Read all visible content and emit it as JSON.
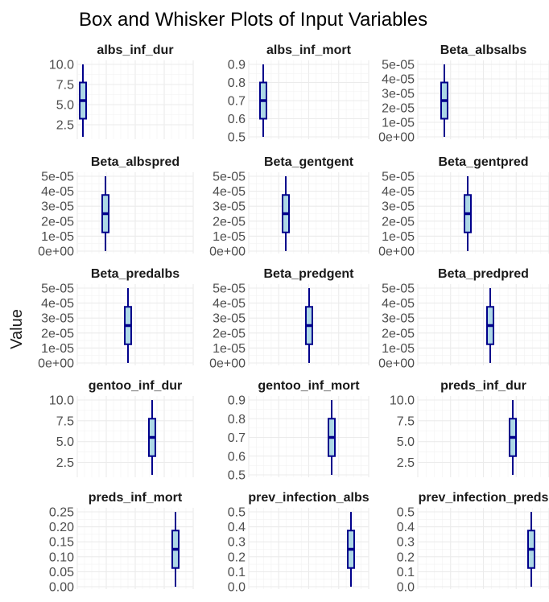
{
  "chart_data": {
    "type": "box",
    "title": "Box and Whisker Plots of Input Variables",
    "xlabel": "",
    "ylabel": "Value",
    "grid": true,
    "box_fill": "#add8e6",
    "box_stroke": "#00008b",
    "facets": [
      {
        "name": "albs_inf_dur",
        "ylim": [
          1,
          10
        ],
        "ticks": [
          "2.5",
          "5.0",
          "7.5",
          "10.0"
        ],
        "tick_values": [
          2.5,
          5.0,
          7.5,
          10.0
        ],
        "min": 1.0,
        "q1": 3.25,
        "median": 5.5,
        "q3": 7.75,
        "max": 10.0
      },
      {
        "name": "albs_inf_mort",
        "ylim": [
          0.5,
          0.9
        ],
        "ticks": [
          "0.5",
          "0.6",
          "0.7",
          "0.8",
          "0.9"
        ],
        "tick_values": [
          0.5,
          0.6,
          0.7,
          0.8,
          0.9
        ],
        "min": 0.5,
        "q1": 0.6,
        "median": 0.7,
        "q3": 0.8,
        "max": 0.9
      },
      {
        "name": "Beta_albsalbs",
        "ylim": [
          0,
          5e-05
        ],
        "ticks": [
          "0e+00",
          "1e-05",
          "2e-05",
          "3e-05",
          "4e-05",
          "5e-05"
        ],
        "tick_values": [
          0,
          1e-05,
          2e-05,
          3e-05,
          4e-05,
          5e-05
        ],
        "min": 0.0,
        "q1": 1.25e-05,
        "median": 2.5e-05,
        "q3": 3.75e-05,
        "max": 5e-05
      },
      {
        "name": "Beta_albspred",
        "ylim": [
          0,
          5e-05
        ],
        "ticks": [
          "0e+00",
          "1e-05",
          "2e-05",
          "3e-05",
          "4e-05",
          "5e-05"
        ],
        "tick_values": [
          0,
          1e-05,
          2e-05,
          3e-05,
          4e-05,
          5e-05
        ],
        "min": 0.0,
        "q1": 1.25e-05,
        "median": 2.5e-05,
        "q3": 3.75e-05,
        "max": 5e-05
      },
      {
        "name": "Beta_gentgent",
        "ylim": [
          0,
          5e-05
        ],
        "ticks": [
          "0e+00",
          "1e-05",
          "2e-05",
          "3e-05",
          "4e-05",
          "5e-05"
        ],
        "tick_values": [
          0,
          1e-05,
          2e-05,
          3e-05,
          4e-05,
          5e-05
        ],
        "min": 0.0,
        "q1": 1.25e-05,
        "median": 2.5e-05,
        "q3": 3.75e-05,
        "max": 5e-05
      },
      {
        "name": "Beta_gentpred",
        "ylim": [
          0,
          5e-05
        ],
        "ticks": [
          "0e+00",
          "1e-05",
          "2e-05",
          "3e-05",
          "4e-05",
          "5e-05"
        ],
        "tick_values": [
          0,
          1e-05,
          2e-05,
          3e-05,
          4e-05,
          5e-05
        ],
        "min": 0.0,
        "q1": 1.25e-05,
        "median": 2.5e-05,
        "q3": 3.75e-05,
        "max": 5e-05
      },
      {
        "name": "Beta_predalbs",
        "ylim": [
          0,
          5e-05
        ],
        "ticks": [
          "0e+00",
          "1e-05",
          "2e-05",
          "3e-05",
          "4e-05",
          "5e-05"
        ],
        "tick_values": [
          0,
          1e-05,
          2e-05,
          3e-05,
          4e-05,
          5e-05
        ],
        "min": 0.0,
        "q1": 1.25e-05,
        "median": 2.5e-05,
        "q3": 3.75e-05,
        "max": 5e-05
      },
      {
        "name": "Beta_predgent",
        "ylim": [
          0,
          5e-05
        ],
        "ticks": [
          "0e+00",
          "1e-05",
          "2e-05",
          "3e-05",
          "4e-05",
          "5e-05"
        ],
        "tick_values": [
          0,
          1e-05,
          2e-05,
          3e-05,
          4e-05,
          5e-05
        ],
        "min": 0.0,
        "q1": 1.25e-05,
        "median": 2.5e-05,
        "q3": 3.75e-05,
        "max": 5e-05
      },
      {
        "name": "Beta_predpred",
        "ylim": [
          0,
          5e-05
        ],
        "ticks": [
          "0e+00",
          "1e-05",
          "2e-05",
          "3e-05",
          "4e-05",
          "5e-05"
        ],
        "tick_values": [
          0,
          1e-05,
          2e-05,
          3e-05,
          4e-05,
          5e-05
        ],
        "min": 0.0,
        "q1": 1.25e-05,
        "median": 2.5e-05,
        "q3": 3.75e-05,
        "max": 5e-05
      },
      {
        "name": "gentoo_inf_dur",
        "ylim": [
          1,
          10
        ],
        "ticks": [
          "2.5",
          "5.0",
          "7.5",
          "10.0"
        ],
        "tick_values": [
          2.5,
          5.0,
          7.5,
          10.0
        ],
        "min": 1.0,
        "q1": 3.25,
        "median": 5.5,
        "q3": 7.75,
        "max": 10.0
      },
      {
        "name": "gentoo_inf_mort",
        "ylim": [
          0.5,
          0.9
        ],
        "ticks": [
          "0.5",
          "0.6",
          "0.7",
          "0.8",
          "0.9"
        ],
        "tick_values": [
          0.5,
          0.6,
          0.7,
          0.8,
          0.9
        ],
        "min": 0.5,
        "q1": 0.6,
        "median": 0.7,
        "q3": 0.8,
        "max": 0.9
      },
      {
        "name": "preds_inf_dur",
        "ylim": [
          1,
          10
        ],
        "ticks": [
          "2.5",
          "5.0",
          "7.5",
          "10.0"
        ],
        "tick_values": [
          2.5,
          5.0,
          7.5,
          10.0
        ],
        "min": 1.0,
        "q1": 3.25,
        "median": 5.5,
        "q3": 7.75,
        "max": 10.0
      },
      {
        "name": "preds_inf_mort",
        "ylim": [
          0,
          0.25
        ],
        "ticks": [
          "0.00",
          "0.05",
          "0.10",
          "0.15",
          "0.20",
          "0.25"
        ],
        "tick_values": [
          0,
          0.05,
          0.1,
          0.15,
          0.2,
          0.25
        ],
        "min": 0.0,
        "q1": 0.0625,
        "median": 0.125,
        "q3": 0.1875,
        "max": 0.25
      },
      {
        "name": "prev_infection_albs",
        "ylim": [
          0,
          0.5
        ],
        "ticks": [
          "0.0",
          "0.1",
          "0.2",
          "0.3",
          "0.4",
          "0.5"
        ],
        "tick_values": [
          0,
          0.1,
          0.2,
          0.3,
          0.4,
          0.5
        ],
        "min": 0.0,
        "q1": 0.125,
        "median": 0.25,
        "q3": 0.375,
        "max": 0.5
      },
      {
        "name": "prev_infection_preds",
        "ylim": [
          0,
          0.5
        ],
        "ticks": [
          "0.0",
          "0.1",
          "0.2",
          "0.3",
          "0.4",
          "0.5"
        ],
        "tick_values": [
          0,
          0.1,
          0.2,
          0.3,
          0.4,
          0.5
        ],
        "min": 0.0,
        "q1": 0.125,
        "median": 0.25,
        "q3": 0.375,
        "max": 0.5
      }
    ]
  }
}
